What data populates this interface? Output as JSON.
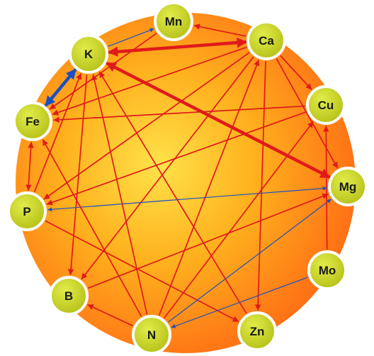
{
  "diagram": {
    "nodes": [
      {
        "id": "mn",
        "label": "Mn"
      },
      {
        "id": "ca",
        "label": "Ca"
      },
      {
        "id": "k",
        "label": "K"
      },
      {
        "id": "cu",
        "label": "Cu"
      },
      {
        "id": "fe",
        "label": "Fe"
      },
      {
        "id": "mg",
        "label": "Mg"
      },
      {
        "id": "p",
        "label": "P"
      },
      {
        "id": "mo",
        "label": "Mo"
      },
      {
        "id": "b",
        "label": "B"
      },
      {
        "id": "zn",
        "label": "Zn"
      },
      {
        "id": "n",
        "label": "N"
      }
    ],
    "edges": [
      {
        "from": "k",
        "to": "mn",
        "type": "blue",
        "arrows": "end"
      },
      {
        "from": "ca",
        "to": "mn",
        "type": "red",
        "arrows": "end"
      },
      {
        "from": "k",
        "to": "ca",
        "type": "red-thick",
        "arrows": "both"
      },
      {
        "from": "k",
        "to": "mg",
        "type": "red-thick",
        "arrows": "both"
      },
      {
        "from": "fe",
        "to": "k",
        "type": "blue-thick",
        "arrows": "both"
      },
      {
        "from": "ca",
        "to": "fe",
        "type": "red",
        "arrows": "end"
      },
      {
        "from": "ca",
        "to": "p",
        "type": "red",
        "arrows": "end"
      },
      {
        "from": "ca",
        "to": "b",
        "type": "red",
        "arrows": "end"
      },
      {
        "from": "ca",
        "to": "zn",
        "type": "red",
        "arrows": "end"
      },
      {
        "from": "ca",
        "to": "mg",
        "type": "red",
        "arrows": "end"
      },
      {
        "from": "ca",
        "to": "cu",
        "type": "red",
        "arrows": "end"
      },
      {
        "from": "n",
        "to": "ca",
        "type": "red",
        "arrows": "end"
      },
      {
        "from": "cu",
        "to": "fe",
        "type": "red",
        "arrows": "end"
      },
      {
        "from": "cu",
        "to": "p",
        "type": "red",
        "arrows": "end"
      },
      {
        "from": "fe",
        "to": "p",
        "type": "red",
        "arrows": "both"
      },
      {
        "from": "p",
        "to": "k",
        "type": "red",
        "arrows": "end"
      },
      {
        "from": "p",
        "to": "mg",
        "type": "blue",
        "arrows": "both"
      },
      {
        "from": "p",
        "to": "zn",
        "type": "red",
        "arrows": "end"
      },
      {
        "from": "k",
        "to": "b",
        "type": "red",
        "arrows": "end"
      },
      {
        "from": "n",
        "to": "b",
        "type": "red",
        "arrows": "end"
      },
      {
        "from": "n",
        "to": "k",
        "type": "red",
        "arrows": "end"
      },
      {
        "from": "n",
        "to": "fe",
        "type": "red",
        "arrows": "end"
      },
      {
        "from": "n",
        "to": "cu",
        "type": "red",
        "arrows": "end"
      },
      {
        "from": "n",
        "to": "mg",
        "type": "blue",
        "arrows": "end"
      },
      {
        "from": "mo",
        "to": "n",
        "type": "blue",
        "arrows": "end"
      },
      {
        "from": "mo",
        "to": "cu",
        "type": "red",
        "arrows": "end"
      },
      {
        "from": "zn",
        "to": "k",
        "type": "red",
        "arrows": "end"
      },
      {
        "from": "mn",
        "to": "fe",
        "type": "red",
        "arrows": "end"
      },
      {
        "from": "b",
        "to": "mg",
        "type": "red",
        "arrows": "end"
      }
    ]
  },
  "colors": {
    "disc_center": "#ffe24a",
    "disc_mid": "#ffb21e",
    "disc_edge": "#ff6a14",
    "node_fill": "#b7c31a",
    "node_ring": "#ffffff",
    "red_edge": "#e01a1a",
    "blue_edge": "#1b4fc2"
  }
}
